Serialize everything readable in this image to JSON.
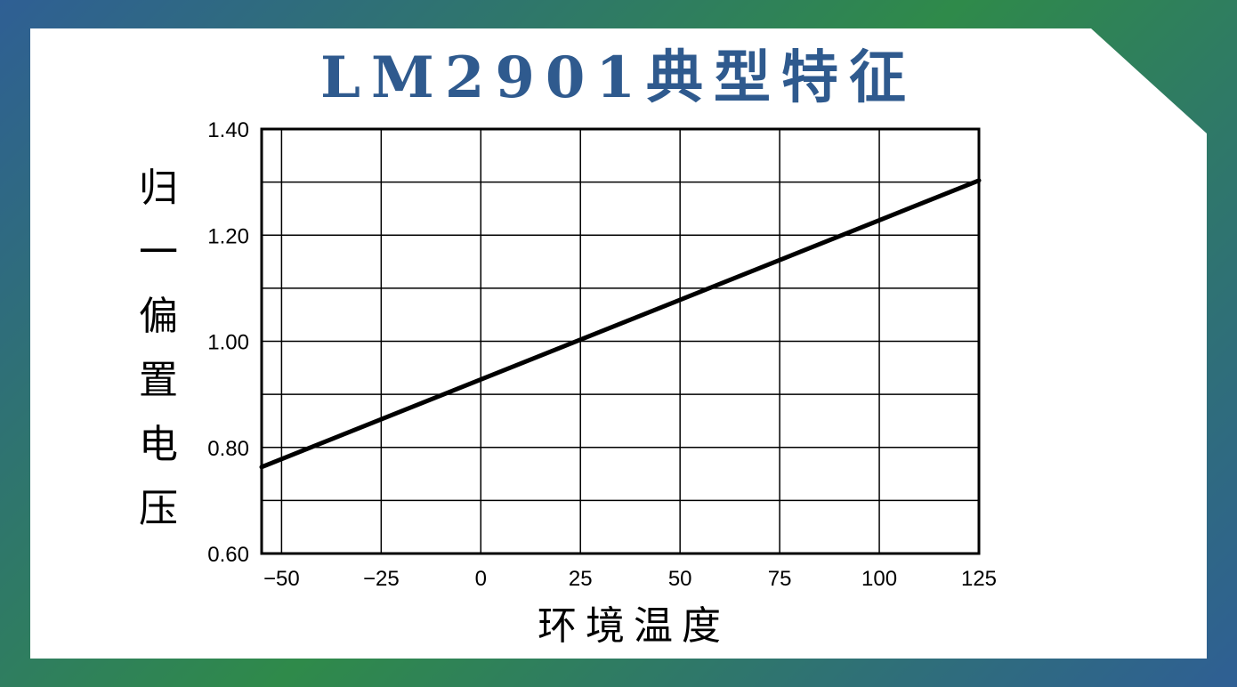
{
  "title": "LM2901典型特征",
  "chart_data": {
    "type": "line",
    "ylabel": "归一偏置电压",
    "xlabel": "环境温度",
    "xlim": [
      -55,
      125
    ],
    "ylim": [
      0.6,
      1.4
    ],
    "xticks": [
      -50,
      -25,
      0,
      25,
      50,
      75,
      100,
      125
    ],
    "yticks": [
      0.6,
      0.8,
      1.0,
      1.2,
      1.4
    ],
    "ytick_labels": [
      "0.60",
      "0.80",
      "1.00",
      "1.20",
      "1.40"
    ],
    "grid": true,
    "series": [
      {
        "x": [
          -55,
          125
        ],
        "y": [
          0.763,
          1.303
        ]
      }
    ]
  }
}
